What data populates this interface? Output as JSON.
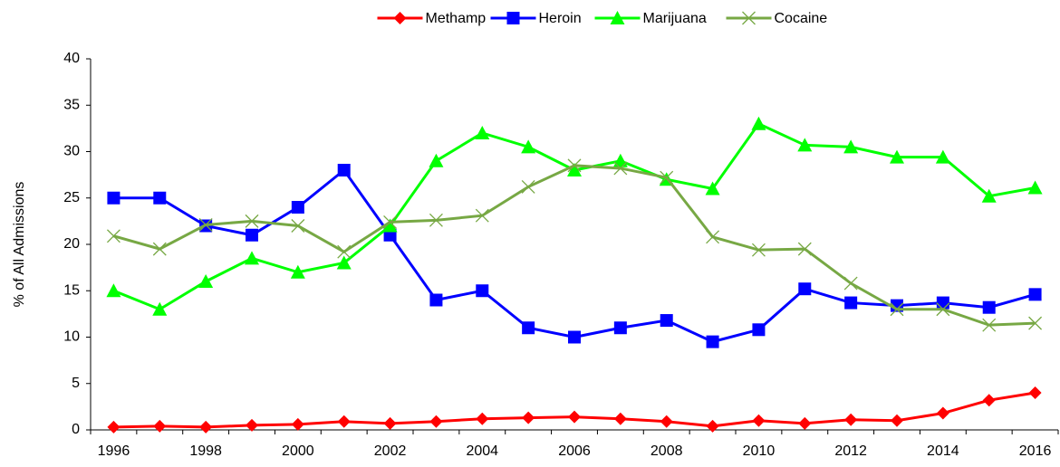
{
  "chart_data": {
    "type": "line",
    "y_label": "% of All Admissions",
    "categories": [
      "1996",
      null,
      "1998",
      null,
      "2000",
      null,
      "2002",
      null,
      "2004",
      null,
      "2006",
      null,
      "2008",
      null,
      "2010",
      null,
      "2012",
      null,
      "2014",
      null,
      "2016"
    ],
    "series": [
      {
        "name": "Methamp",
        "color": "#ff0000",
        "marker": "diamond",
        "values": [
          0.3,
          0.4,
          0.3,
          0.5,
          0.6,
          0.9,
          0.7,
          0.9,
          1.2,
          1.3,
          1.4,
          1.2,
          0.9,
          0.4,
          1.0,
          0.7,
          1.1,
          1.0,
          1.8,
          3.2,
          4.0
        ]
      },
      {
        "name": "Heroin",
        "color": "#0000ff",
        "marker": "square",
        "values": [
          25,
          25,
          22,
          21,
          24,
          28,
          21,
          14,
          15,
          11,
          10,
          11,
          11.8,
          9.5,
          10.8,
          15.2,
          13.7,
          13.4,
          13.7,
          13.2,
          14.6
        ]
      },
      {
        "name": "Marijuana",
        "color": "#00ff00",
        "marker": "triangle",
        "values": [
          15,
          13,
          16,
          18.5,
          17,
          18,
          22,
          29,
          32,
          30.5,
          28,
          29,
          27,
          26,
          33,
          30.7,
          30.5,
          29.4,
          29.4,
          25.2,
          26.1
        ]
      },
      {
        "name": "Cocaine",
        "color": "#77a844",
        "marker": "x",
        "values": [
          20.9,
          19.5,
          22.1,
          22.5,
          22,
          19.2,
          22.4,
          22.6,
          23.1,
          26.2,
          28.5,
          28.2,
          27.2,
          20.8,
          19.4,
          19.5,
          15.8,
          13,
          13,
          11.3,
          11.5
        ]
      }
    ],
    "ylim": [
      0,
      40
    ],
    "yticks": [
      0,
      5,
      10,
      15,
      20,
      25,
      30,
      35,
      40
    ],
    "grid": false,
    "legend": "top"
  }
}
